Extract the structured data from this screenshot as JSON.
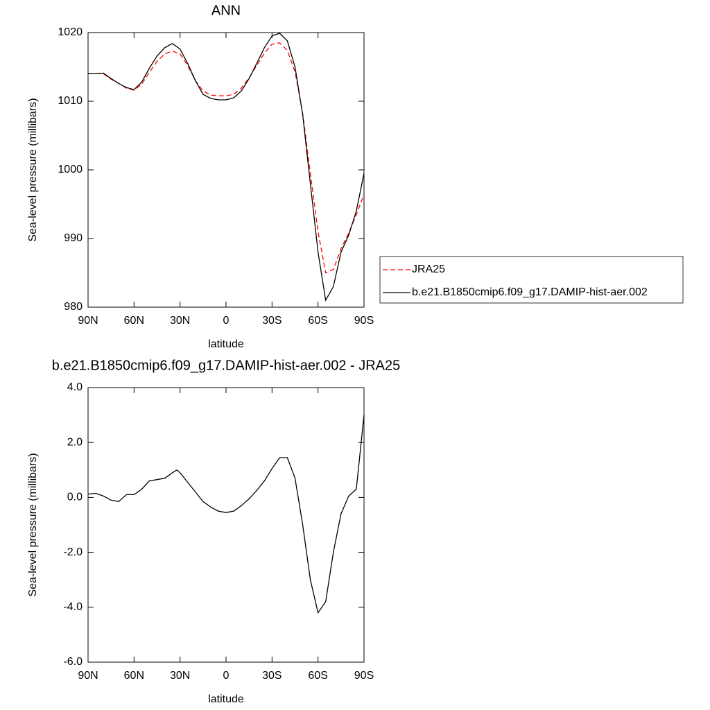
{
  "chart_data": [
    {
      "type": "line",
      "title": "ANN",
      "xlabel": "latitude",
      "ylabel": "Sea-level pressure (millibars)",
      "x": [
        90,
        85,
        80,
        75,
        70,
        65,
        60,
        55,
        50,
        45,
        40,
        35,
        30,
        25,
        20,
        15,
        10,
        5,
        0,
        -5,
        -10,
        -15,
        -20,
        -25,
        -30,
        -35,
        -40,
        -45,
        -50,
        -55,
        -60,
        -65,
        -70,
        -75,
        -80,
        -85,
        -90
      ],
      "series": [
        {
          "name": "JRA25",
          "color": "#ff0000",
          "dash": "dashed",
          "values": [
            1014,
            1014,
            1014,
            1013.2,
            1012.6,
            1011.9,
            1011.6,
            1012.5,
            1014.2,
            1015.8,
            1016.9,
            1017.3,
            1016.9,
            1015.2,
            1013,
            1011.5,
            1010.9,
            1010.8,
            1010.8,
            1011,
            1011.9,
            1013.4,
            1015.2,
            1017,
            1018.3,
            1018.5,
            1017.4,
            1014.3,
            1008.2,
            999.5,
            991,
            985,
            985.5,
            988.5,
            990.8,
            993.5,
            996.4
          ]
        },
        {
          "name": "b.e21.B1850cmip6.f09_g17.DAMIP-hist-aer.002",
          "color": "#000000",
          "dash": "solid",
          "values": [
            1014,
            1014,
            1014.1,
            1013.3,
            1012.6,
            1012,
            1011.7,
            1012.8,
            1014.8,
            1016.6,
            1017.8,
            1018.4,
            1017.6,
            1015.5,
            1013,
            1011,
            1010.4,
            1010.2,
            1010.2,
            1010.5,
            1011.5,
            1013.3,
            1015.5,
            1017.8,
            1019.5,
            1019.9,
            1018.8,
            1015,
            1008,
            998,
            988,
            981,
            983,
            988,
            990.5,
            994,
            999.5
          ]
        }
      ],
      "xlim": [
        90,
        -90
      ],
      "xticks": [
        {
          "value": 90,
          "label": "90N"
        },
        {
          "value": 60,
          "label": "60N"
        },
        {
          "value": 30,
          "label": "30N"
        },
        0,
        {
          "value": -30,
          "label": "30S"
        },
        {
          "value": -60,
          "label": "60S"
        },
        {
          "value": -90,
          "label": "90S"
        }
      ],
      "ylim": [
        980,
        1020
      ],
      "yticks": [
        980,
        990,
        1000,
        1010,
        1020
      ],
      "legend": "right"
    },
    {
      "type": "line",
      "title": "b.e21.B1850cmip6.f09_g17.DAMIP-hist-aer.002 - JRA25",
      "xlabel": "latitude",
      "ylabel": "Sea-level pressure (millibars)",
      "x": [
        90,
        85,
        80,
        75,
        70,
        65,
        60,
        55,
        50,
        45,
        40,
        35,
        32,
        30,
        25,
        20,
        15,
        10,
        5,
        0,
        -5,
        -10,
        -15,
        -20,
        -25,
        -30,
        -35,
        -40,
        -45,
        -50,
        -55,
        -60,
        -65,
        -70,
        -75,
        -80,
        -85,
        -90
      ],
      "series": [
        {
          "color": "#000000",
          "dash": "solid",
          "values": [
            0.12,
            0.15,
            0.05,
            -0.1,
            -0.15,
            0.1,
            0.1,
            0.3,
            0.6,
            0.65,
            0.7,
            0.9,
            1.0,
            0.9,
            0.55,
            0.2,
            -0.15,
            -0.35,
            -0.5,
            -0.55,
            -0.5,
            -0.3,
            -0.05,
            0.25,
            0.6,
            1.05,
            1.45,
            1.45,
            0.7,
            -1.0,
            -3.0,
            -4.2,
            -3.8,
            -2.0,
            -0.6,
            0.05,
            0.3,
            3.0
          ]
        }
      ],
      "xlim": [
        90,
        -90
      ],
      "xticks": [
        {
          "value": 90,
          "label": "90N"
        },
        {
          "value": 60,
          "label": "60N"
        },
        {
          "value": 30,
          "label": "30N"
        },
        0,
        {
          "value": -30,
          "label": "30S"
        },
        {
          "value": -60,
          "label": "60S"
        },
        {
          "value": -90,
          "label": "90S"
        }
      ],
      "ylim": [
        -6,
        4
      ],
      "yticks": [
        {
          "value": -6,
          "label": "-6.0"
        },
        {
          "value": -4,
          "label": "-4.0"
        },
        {
          "value": -2,
          "label": "-2.0"
        },
        {
          "value": 0,
          "label": "0.0"
        },
        {
          "value": 2,
          "label": "2.0"
        },
        {
          "value": 4,
          "label": "4.0"
        }
      ]
    }
  ]
}
